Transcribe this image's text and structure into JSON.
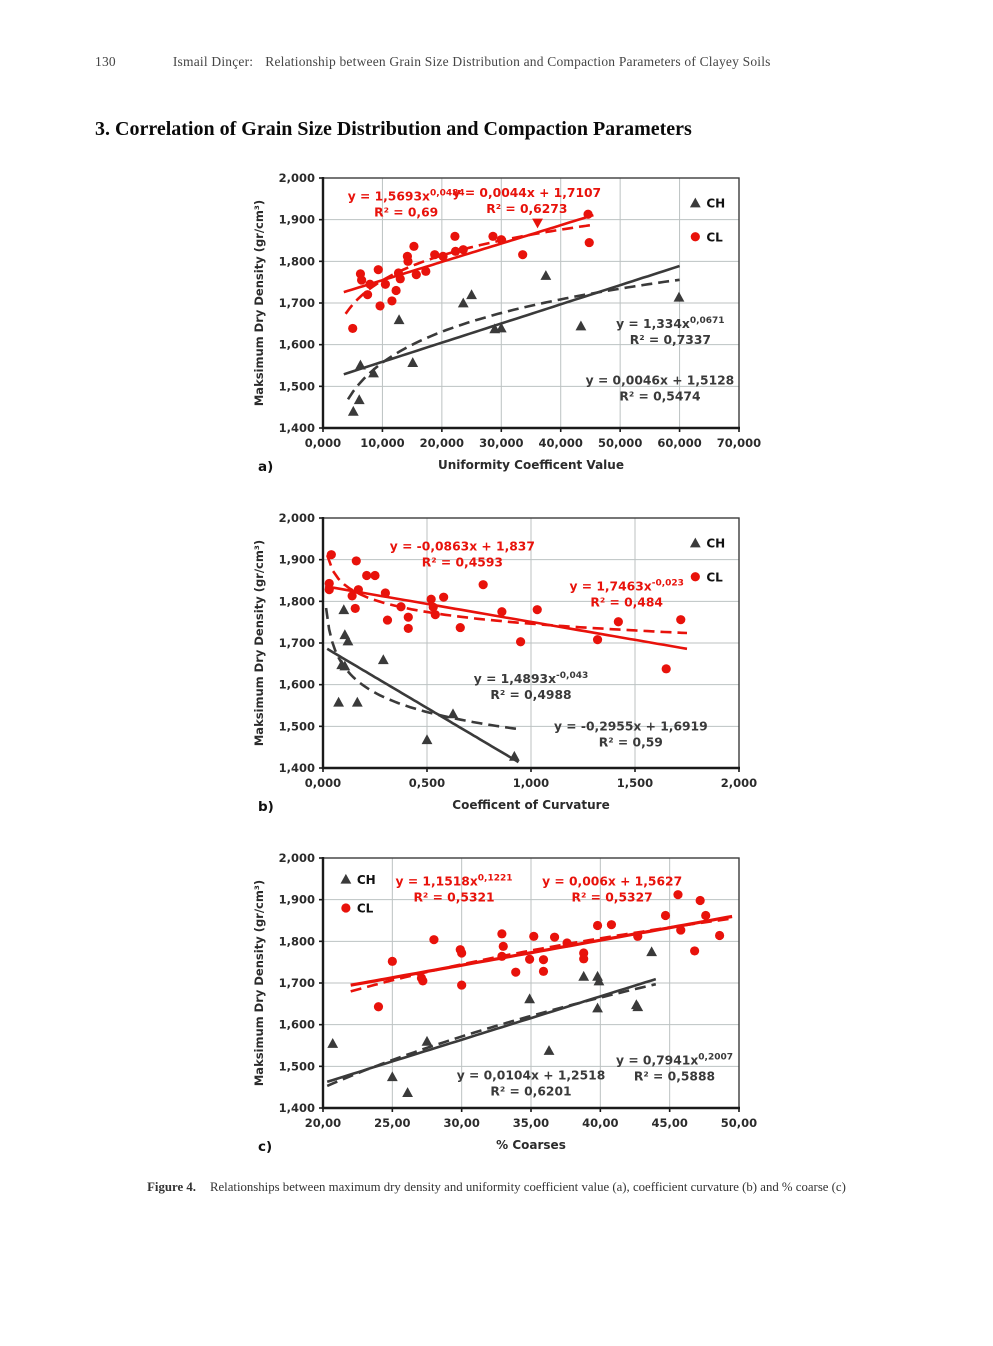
{
  "header": {
    "page_number": "130",
    "author": "Ismail Dinçer:",
    "running_title": "Relationship between Grain Size Distribution and Compaction Parameters of Clayey Soils"
  },
  "section_heading": "3. Correlation of Grain Size Distribution and Compaction Parameters",
  "caption": {
    "label": "Figure 4.",
    "text": "Relationships between maximum dry density and uniformity coefficient value (a), coefficient curvature (b) and % coarse (c)"
  },
  "colors": {
    "ch": "#3a3a3a",
    "cl": "#e8120b",
    "grid": "#bcc2c2",
    "axis": "#3c3c3c",
    "tick_text": "#2b2b2b"
  },
  "legend_labels": {
    "ch": "CH",
    "cl": "CL"
  },
  "chart_data": [
    {
      "id": "a",
      "type": "scatter",
      "panel_label": "a)",
      "xlabel": "Uniformity Coefficent Value",
      "ylabel": "Maksimum Dry Density (gr/cm³)",
      "xlim": [
        0,
        70
      ],
      "ylim": [
        1.4,
        2.0
      ],
      "xticks": [
        0,
        10,
        20,
        30,
        40,
        50,
        60,
        70
      ],
      "xtick_labels": [
        "0,000",
        "10,000",
        "20,000",
        "30,000",
        "40,000",
        "50,000",
        "60,000",
        "70,000"
      ],
      "yticks": [
        1.4,
        1.5,
        1.6,
        1.7,
        1.8,
        1.9,
        2.0
      ],
      "ytick_labels": [
        "1,400",
        "1,500",
        "1,600",
        "1,700",
        "1,800",
        "1,900",
        "2,000"
      ],
      "legend": {
        "pos": "top-right",
        "fx": 0.895,
        "fy_ch": 0.1,
        "fy_cl": 0.235
      },
      "series": [
        {
          "name": "CH",
          "marker": "triangle",
          "color": "ch",
          "points": [
            [
              5.1,
              1.44
            ],
            [
              6.1,
              1.468
            ],
            [
              6.3,
              1.551
            ],
            [
              8.5,
              1.532
            ],
            [
              12.8,
              1.66
            ],
            [
              15.1,
              1.557
            ],
            [
              23.6,
              1.7
            ],
            [
              25.0,
              1.72
            ],
            [
              28.9,
              1.638
            ],
            [
              30.0,
              1.64
            ],
            [
              37.5,
              1.766
            ],
            [
              43.4,
              1.645
            ],
            [
              59.9,
              1.714
            ]
          ]
        },
        {
          "name": "CL",
          "marker": "circle",
          "color": "cl",
          "points": [
            [
              5.0,
              1.639
            ],
            [
              6.3,
              1.77
            ],
            [
              6.5,
              1.755
            ],
            [
              7.5,
              1.72
            ],
            [
              7.9,
              1.745
            ],
            [
              9.3,
              1.78
            ],
            [
              9.6,
              1.693
            ],
            [
              10.5,
              1.745
            ],
            [
              11.6,
              1.705
            ],
            [
              12.3,
              1.73
            ],
            [
              12.7,
              1.772
            ],
            [
              13.0,
              1.758
            ],
            [
              14.2,
              1.812
            ],
            [
              14.3,
              1.8
            ],
            [
              15.3,
              1.836
            ],
            [
              15.7,
              1.768
            ],
            [
              17.3,
              1.776
            ],
            [
              18.8,
              1.816
            ],
            [
              20.2,
              1.812
            ],
            [
              22.2,
              1.86
            ],
            [
              22.3,
              1.824
            ],
            [
              23.6,
              1.828
            ],
            [
              28.6,
              1.86
            ],
            [
              30.0,
              1.852
            ],
            [
              33.6,
              1.816
            ],
            [
              44.6,
              1.913
            ],
            [
              44.8,
              1.845
            ]
          ],
          "special": [
            {
              "x": 36.1,
              "y": 1.892,
              "marker": "triangle-down"
            }
          ]
        }
      ],
      "trendlines": [
        {
          "series": "CL",
          "fit": "linear",
          "m": 0.0044,
          "c0": 1.7107,
          "x1": 3.5,
          "x2": 45.5,
          "style": "solid"
        },
        {
          "series": "CL",
          "fit": "power",
          "k": 1.5693,
          "p": 0.0484,
          "x1": 3.8,
          "x2": 45.5,
          "style": "dashed"
        },
        {
          "series": "CH",
          "fit": "linear",
          "m": 0.0046,
          "c0": 1.5128,
          "x1": 3.5,
          "x2": 60,
          "style": "solid"
        },
        {
          "series": "CH",
          "fit": "power",
          "k": 1.334,
          "p": 0.0671,
          "x1": 4.2,
          "x2": 60,
          "style": "dashed"
        }
      ],
      "annotations": [
        {
          "color": "cl",
          "fx": 0.2,
          "fy": 0.09,
          "rows": [
            {
              "t": "y = 1,5693x",
              "sup": "0,0484"
            },
            {
              "t": "R² = 0,69"
            }
          ]
        },
        {
          "color": "cl",
          "fx": 0.49,
          "fy": 0.075,
          "rows": [
            {
              "t": "y = 0,0044x + 1,7107"
            },
            {
              "t": "R² = 0,6273"
            }
          ]
        },
        {
          "color": "ch",
          "fx": 0.835,
          "fy": 0.6,
          "rows": [
            {
              "t": "y = 1,334x",
              "sup": "0,0671"
            },
            {
              "t": "R² = 0,7337"
            }
          ]
        },
        {
          "color": "ch",
          "fx": 0.81,
          "fy": 0.825,
          "rows": [
            {
              "t": "y = 0,0046x + 1,5128"
            },
            {
              "t": "R² = 0,5474"
            }
          ]
        }
      ]
    },
    {
      "id": "b",
      "type": "scatter",
      "panel_label": "b)",
      "xlabel": "Coefficent of Curvature",
      "ylabel": "Maksimum Dry Density (gr/cm³)",
      "xlim": [
        0,
        2
      ],
      "ylim": [
        1.4,
        2.0
      ],
      "xticks": [
        0,
        0.5,
        1.0,
        1.5,
        2.0
      ],
      "xtick_labels": [
        "0,000",
        "0,500",
        "1,000",
        "1,500",
        "2,000"
      ],
      "yticks": [
        1.4,
        1.5,
        1.6,
        1.7,
        1.8,
        1.9,
        2.0
      ],
      "ytick_labels": [
        "1,400",
        "1,500",
        "1,600",
        "1,700",
        "1,800",
        "1,900",
        "2,000"
      ],
      "legend": {
        "pos": "top-right",
        "fx": 0.895,
        "fy_ch": 0.1,
        "fy_cl": 0.235
      },
      "series": [
        {
          "name": "CH",
          "marker": "triangle",
          "color": "ch",
          "points": [
            [
              0.09,
              1.648
            ],
            [
              0.1,
              1.78
            ],
            [
              0.105,
              1.72
            ],
            [
              0.105,
              1.645
            ],
            [
              0.12,
              1.705
            ],
            [
              0.075,
              1.558
            ],
            [
              0.165,
              1.558
            ],
            [
              0.29,
              1.66
            ],
            [
              0.5,
              1.468
            ],
            [
              0.625,
              1.53
            ],
            [
              0.92,
              1.428
            ]
          ]
        },
        {
          "name": "CL",
          "marker": "circle",
          "color": "cl",
          "points": [
            [
              0.03,
              1.843
            ],
            [
              0.03,
              1.828
            ],
            [
              0.04,
              1.912
            ],
            [
              0.14,
              1.813
            ],
            [
              0.155,
              1.783
            ],
            [
              0.16,
              1.897
            ],
            [
              0.17,
              1.828
            ],
            [
              0.21,
              1.862
            ],
            [
              0.25,
              1.862
            ],
            [
              0.3,
              1.82
            ],
            [
              0.31,
              1.755
            ],
            [
              0.375,
              1.787
            ],
            [
              0.41,
              1.762
            ],
            [
              0.41,
              1.735
            ],
            [
              0.52,
              1.805
            ],
            [
              0.53,
              1.786
            ],
            [
              0.54,
              1.768
            ],
            [
              0.58,
              1.81
            ],
            [
              0.66,
              1.737
            ],
            [
              0.77,
              1.84
            ],
            [
              0.86,
              1.775
            ],
            [
              0.95,
              1.703
            ],
            [
              1.03,
              1.78
            ],
            [
              1.32,
              1.708
            ],
            [
              1.42,
              1.751
            ],
            [
              1.65,
              1.638
            ],
            [
              1.72,
              1.756
            ]
          ]
        }
      ],
      "trendlines": [
        {
          "series": "CL",
          "fit": "linear",
          "m": -0.0863,
          "c0": 1.837,
          "x1": 0.01,
          "x2": 1.75,
          "style": "solid"
        },
        {
          "series": "CL",
          "fit": "power",
          "k": 1.7463,
          "p": -0.023,
          "x1": 0.02,
          "x2": 1.75,
          "style": "dashed"
        },
        {
          "series": "CH",
          "fit": "linear",
          "m": -0.2955,
          "c0": 1.6919,
          "x1": 0.02,
          "x2": 0.94,
          "style": "solid"
        },
        {
          "series": "CH",
          "fit": "power",
          "k": 1.4893,
          "p": -0.043,
          "x1": 0.015,
          "x2": 0.94,
          "style": "dashed"
        }
      ],
      "annotations": [
        {
          "color": "cl",
          "fx": 0.335,
          "fy": 0.13,
          "rows": [
            {
              "t": "y = -0,0863x + 1,837"
            },
            {
              "t": "R² = 0,4593"
            }
          ]
        },
        {
          "color": "cl",
          "fx": 0.73,
          "fy": 0.29,
          "rows": [
            {
              "t": "y = 1,7463x",
              "sup": "-0,023"
            },
            {
              "t": "R² = 0,484"
            }
          ]
        },
        {
          "color": "ch",
          "fx": 0.5,
          "fy": 0.66,
          "rows": [
            {
              "t": "y = 1,4893x",
              "sup": "-0,043"
            },
            {
              "t": "R² = 0,4988"
            }
          ]
        },
        {
          "color": "ch",
          "fx": 0.74,
          "fy": 0.85,
          "rows": [
            {
              "t": "y = -0,2955x + 1,6919"
            },
            {
              "t": "R² = 0,59"
            }
          ]
        }
      ]
    },
    {
      "id": "c",
      "type": "scatter",
      "panel_label": "c)",
      "xlabel": "% Coarses",
      "ylabel": "Maksimum Dry Density (gr/cm³)",
      "xlim": [
        20,
        50
      ],
      "ylim": [
        1.4,
        2.0
      ],
      "xticks": [
        20,
        25,
        30,
        35,
        40,
        45,
        50
      ],
      "xtick_labels": [
        "20,00",
        "25,00",
        "30,00",
        "35,00",
        "40,00",
        "45,00",
        "50,00"
      ],
      "yticks": [
        1.4,
        1.5,
        1.6,
        1.7,
        1.8,
        1.9,
        2.0
      ],
      "ytick_labels": [
        "1,400",
        "1,500",
        "1,600",
        "1,700",
        "1,800",
        "1,900",
        "2,000"
      ],
      "legend": {
        "pos": "top-left",
        "fx": 0.055,
        "fy_ch": 0.085,
        "fy_cl": 0.2
      },
      "series": [
        {
          "name": "CH",
          "marker": "triangle",
          "color": "ch",
          "points": [
            [
              20.7,
              1.555
            ],
            [
              25.0,
              1.475
            ],
            [
              26.1,
              1.437
            ],
            [
              27.5,
              1.56
            ],
            [
              34.9,
              1.662
            ],
            [
              36.3,
              1.538
            ],
            [
              38.8,
              1.716
            ],
            [
              39.8,
              1.716
            ],
            [
              39.9,
              1.705
            ],
            [
              39.8,
              1.64
            ],
            [
              42.6,
              1.648
            ],
            [
              42.7,
              1.643
            ],
            [
              43.7,
              1.775
            ]
          ]
        },
        {
          "name": "CL",
          "marker": "circle",
          "color": "cl",
          "points": [
            [
              24.0,
              1.643
            ],
            [
              25.0,
              1.752
            ],
            [
              27.1,
              1.712
            ],
            [
              27.2,
              1.705
            ],
            [
              28.0,
              1.804
            ],
            [
              29.9,
              1.78
            ],
            [
              30.0,
              1.772
            ],
            [
              30.0,
              1.695
            ],
            [
              32.9,
              1.818
            ],
            [
              33.0,
              1.788
            ],
            [
              32.9,
              1.764
            ],
            [
              33.9,
              1.726
            ],
            [
              34.9,
              1.757
            ],
            [
              35.2,
              1.812
            ],
            [
              35.9,
              1.756
            ],
            [
              35.9,
              1.728
            ],
            [
              36.7,
              1.81
            ],
            [
              37.6,
              1.796
            ],
            [
              38.8,
              1.772
            ],
            [
              38.8,
              1.758
            ],
            [
              39.8,
              1.838
            ],
            [
              40.8,
              1.84
            ],
            [
              42.7,
              1.812
            ],
            [
              44.7,
              1.862
            ],
            [
              45.6,
              1.912
            ],
            [
              45.8,
              1.827
            ],
            [
              46.8,
              1.777
            ],
            [
              47.2,
              1.898
            ],
            [
              47.6,
              1.862
            ],
            [
              48.6,
              1.814
            ]
          ]
        }
      ],
      "trendlines": [
        {
          "series": "CL",
          "fit": "linear",
          "m": 0.006,
          "c0": 1.5627,
          "x1": 22,
          "x2": 49.5,
          "style": "solid",
          "w": 3.2
        },
        {
          "series": "CL",
          "fit": "power",
          "k": 1.1518,
          "p": 0.1221,
          "x1": 22,
          "x2": 49.5,
          "style": "dashed"
        },
        {
          "series": "CH",
          "fit": "linear",
          "m": 0.0104,
          "c0": 1.2518,
          "x1": 20.3,
          "x2": 44,
          "style": "solid"
        },
        {
          "series": "CH",
          "fit": "power",
          "k": 0.7941,
          "p": 0.2007,
          "x1": 20.3,
          "x2": 44,
          "style": "dashed"
        }
      ],
      "annotations": [
        {
          "color": "cl",
          "fx": 0.315,
          "fy": 0.11,
          "rows": [
            {
              "t": "y = 1,1518x",
              "sup": "0,1221"
            },
            {
              "t": "R² = 0,5321"
            }
          ]
        },
        {
          "color": "cl",
          "fx": 0.695,
          "fy": 0.11,
          "rows": [
            {
              "t": "y = 0,006x + 1,5627"
            },
            {
              "t": "R² = 0,5327"
            }
          ]
        },
        {
          "color": "ch",
          "fx": 0.5,
          "fy": 0.885,
          "rows": [
            {
              "t": "y = 0,0104x + 1,2518"
            },
            {
              "t": "R² = 0,6201"
            }
          ]
        },
        {
          "color": "ch",
          "fx": 0.845,
          "fy": 0.825,
          "rows": [
            {
              "t": "y = 0,7941x",
              "sup": "0,2007"
            },
            {
              "t": "R² = 0,5888"
            }
          ]
        }
      ]
    }
  ]
}
